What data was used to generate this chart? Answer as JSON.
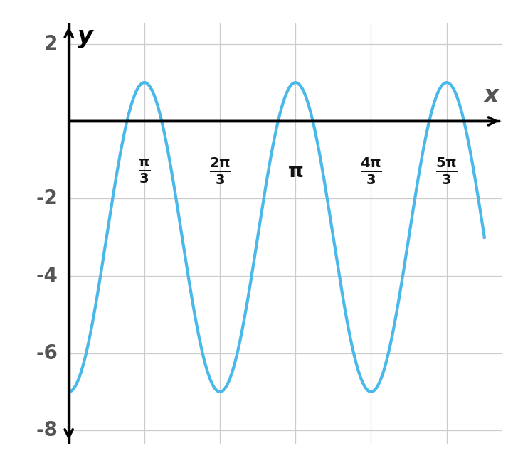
{
  "curve_color": "#4ab8e8",
  "curve_linewidth": 3.0,
  "background_color": "#ffffff",
  "grid_color": "#cccccc",
  "grid_linewidth": 0.9,
  "axis_color": "#000000",
  "axis_linewidth": 2.5,
  "x_start": 0,
  "x_end": 5.76,
  "y_min": -8,
  "y_max": 2,
  "xlim_min": 0,
  "xlim_max": 5.76,
  "ylim_min": -8,
  "ylim_max": 2,
  "x_ticks_vals": [
    1.0472,
    2.0944,
    3.1416,
    4.1888,
    5.236
  ],
  "x_tick_labels": [
    "\\frac{\\pi}{3}",
    "\\frac{2\\pi}{3}",
    "\\pi",
    "\\frac{4\\pi}{3}",
    "\\frac{5\\pi}{3}"
  ],
  "y_ticks": [
    -8,
    -6,
    -4,
    -2,
    2
  ],
  "y_axis_label": "y",
  "x_axis_label": "x",
  "tick_fontsize": 20,
  "label_fontsize": 24
}
